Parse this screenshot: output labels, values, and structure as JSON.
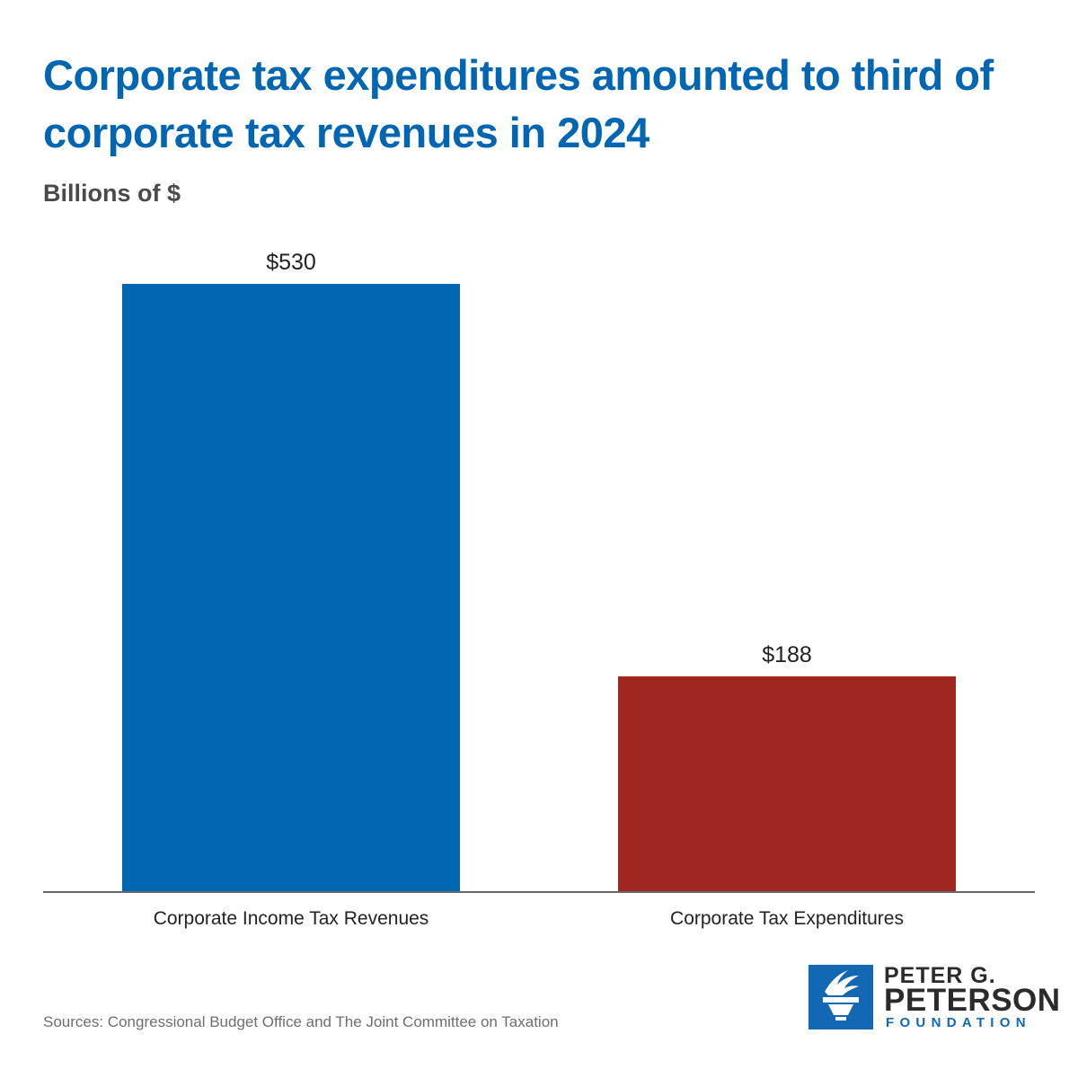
{
  "title": "Corporate tax expenditures amounted to third of corporate tax revenues in 2024",
  "subtitle": "Billions of $",
  "source": "Sources: Congressional Budget Office and The Joint Committee on Taxation",
  "logo": {
    "line1": "PETER G.",
    "line2": "PETERSON",
    "line3": "FOUNDATION",
    "icon": "torch-icon"
  },
  "colors": {
    "title": "#0066b2",
    "revenues": "#0066b2",
    "expenditures": "#a02620",
    "axis": "#666666",
    "text": "#222222"
  },
  "chart_data": {
    "type": "bar",
    "categories": [
      "Corporate Income Tax Revenues",
      "Corporate Tax Expenditures"
    ],
    "values": [
      530,
      188
    ],
    "data_labels": [
      "$530",
      "$188"
    ],
    "bar_colors": [
      "#0066b2",
      "#a02620"
    ],
    "title": "Corporate tax expenditures amounted to third of corporate tax revenues in 2024",
    "xlabel": "",
    "ylabel": "Billions of $",
    "ylim": [
      0,
      530
    ],
    "grid": false,
    "legend": "none"
  }
}
